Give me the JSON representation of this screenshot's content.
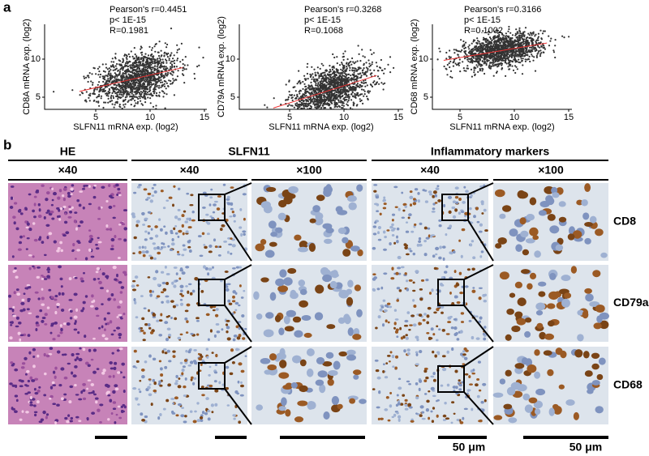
{
  "panel_a": {
    "label": "a",
    "plots": [
      {
        "y_label": "CD8A mRNA exp. (log2)",
        "x_label": "SLFN11 mRNA exp. (log2)",
        "stats": [
          "Pearson's r=0.4451",
          "p< 1E-15",
          "R=0.1981"
        ],
        "xticks": [
          5,
          10,
          15
        ],
        "yticks": [
          5,
          10
        ]
      },
      {
        "y_label": "CD79A mRNA exp. (log2)",
        "x_label": "SLFN11 mRNA exp. (log2)",
        "stats": [
          "Pearson's r=0.3268",
          "p< 1E-15",
          "R=0.1068"
        ],
        "xticks": [
          5,
          10,
          15
        ],
        "yticks": [
          5,
          10
        ]
      },
      {
        "y_label": "CD68 mRNA exp. (log2)",
        "x_label": "SLFN11 mRNA exp. (log2)",
        "stats": [
          "Pearson's r=0.3166",
          "p< 1E-15",
          "R=0.1002"
        ],
        "xticks": [
          5,
          10,
          15
        ],
        "yticks": [
          5,
          10
        ]
      }
    ]
  },
  "panel_b": {
    "label": "b",
    "groups": [
      "HE",
      "SLFN11",
      "Inflammatory markers"
    ],
    "magnifications": [
      "×40",
      "×40",
      "×100",
      "×40",
      "×100"
    ],
    "rows": [
      "CD8",
      "CD79a",
      "CD68"
    ],
    "scale_bars": [
      "50 μm",
      "50 μm"
    ]
  }
}
